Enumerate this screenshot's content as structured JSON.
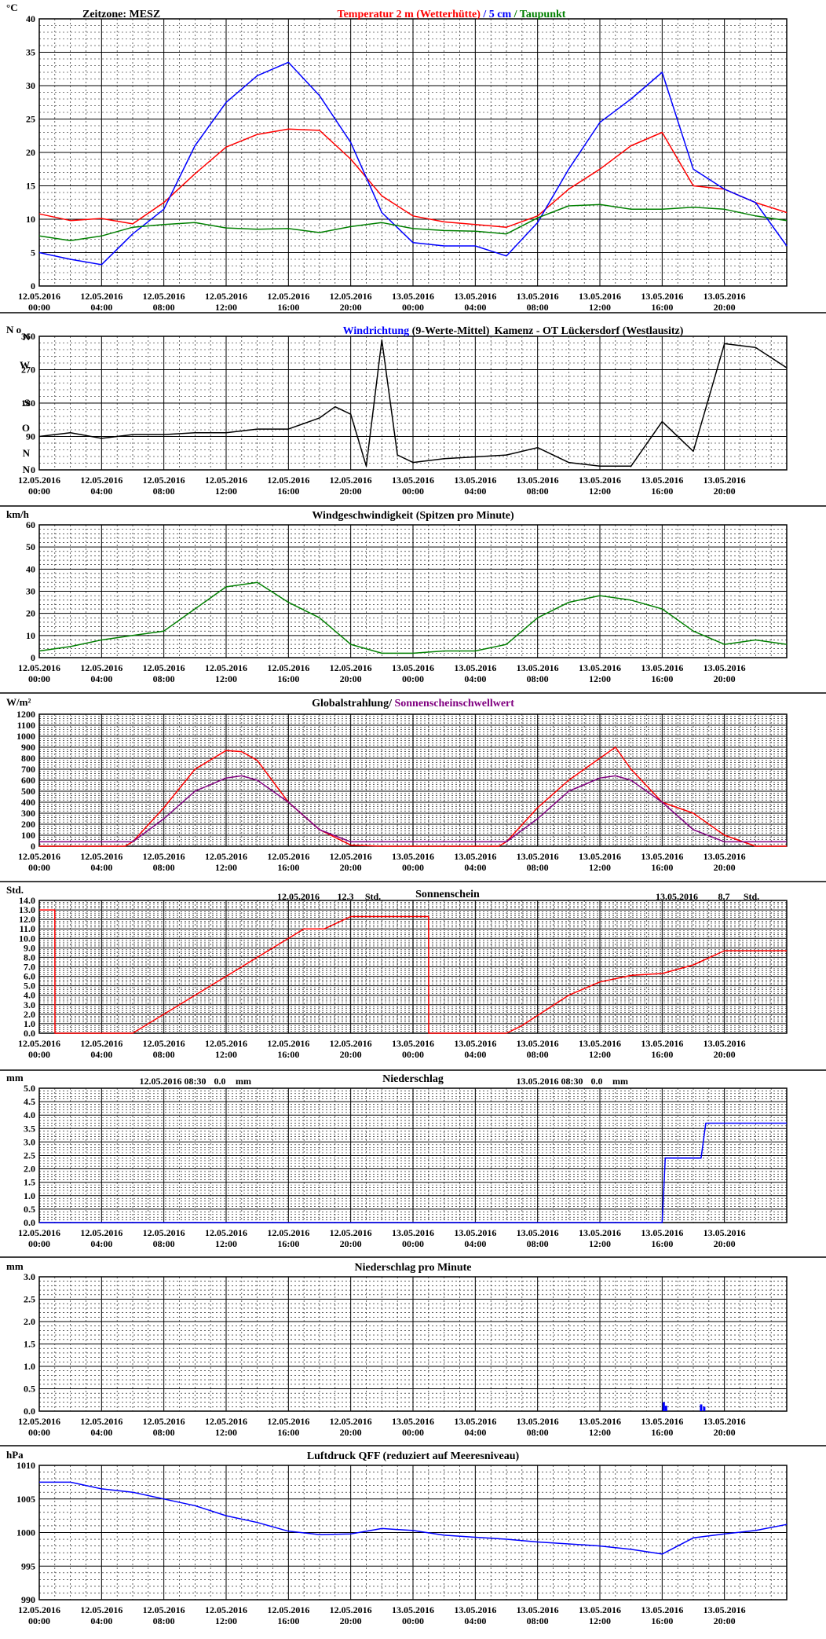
{
  "x_ticks": [
    [
      "12.05.2016",
      "00:00"
    ],
    [
      "12.05.2016",
      "04:00"
    ],
    [
      "12.05.2016",
      "08:00"
    ],
    [
      "12.05.2016",
      "12:00"
    ],
    [
      "12.05.2016",
      "16:00"
    ],
    [
      "12.05.2016",
      "20:00"
    ],
    [
      "13.05.2016",
      "00:00"
    ],
    [
      "13.05.2016",
      "04:00"
    ],
    [
      "13.05.2016",
      "08:00"
    ],
    [
      "13.05.2016",
      "12:00"
    ],
    [
      "13.05.2016",
      "16:00"
    ],
    [
      "13.05.2016",
      "20:00"
    ]
  ],
  "chart_data": [
    {
      "id": "temp",
      "type": "line",
      "unit": "°C",
      "timezone": "Zeitzone: MESZ",
      "title_parts": [
        {
          "text": "Temperatur 2 m (Wetterhütte)",
          "color": "#ff0000"
        },
        {
          "text": " / ",
          "color": "#0000ff"
        },
        {
          "text": "5 cm",
          "color": "#0000ff"
        },
        {
          "text": " / ",
          "color": "#008000"
        },
        {
          "text": "Taupunkt",
          "color": "#008000"
        }
      ],
      "ylim": [
        0,
        40
      ],
      "y_ticks": [
        0,
        5,
        10,
        15,
        20,
        25,
        30,
        35,
        40
      ],
      "x_hours": [
        0,
        2,
        4,
        6,
        8,
        10,
        12,
        14,
        16,
        18,
        20,
        22,
        24,
        26,
        28,
        30,
        32,
        34,
        36,
        38,
        40,
        42,
        44,
        46,
        48
      ],
      "series": [
        {
          "name": "Temperatur 2 m (Wetterhütte)",
          "color": "#ff0000",
          "values": [
            10.8,
            9.8,
            10.1,
            9.3,
            12.5,
            16.8,
            20.8,
            22.7,
            23.5,
            23.3,
            19.0,
            13.5,
            10.5,
            9.6,
            9.2,
            8.8,
            10.5,
            14.5,
            17.5,
            21.0,
            23.0,
            15.0,
            14.5,
            12.5,
            11.0
          ]
        },
        {
          "name": "5 cm",
          "color": "#0000ff",
          "values": [
            5.0,
            4.0,
            3.2,
            7.8,
            11.5,
            21.0,
            27.5,
            31.5,
            33.5,
            28.5,
            21.5,
            11.0,
            6.5,
            6.0,
            6.0,
            4.5,
            9.5,
            17.5,
            24.5,
            28.0,
            32.0,
            17.5,
            14.5,
            12.5,
            6.0
          ]
        },
        {
          "name": "Taupunkt",
          "color": "#008000",
          "values": [
            7.5,
            6.8,
            7.5,
            8.8,
            9.2,
            9.5,
            8.7,
            8.5,
            8.6,
            8.0,
            8.9,
            9.5,
            8.6,
            8.3,
            8.2,
            7.8,
            10.2,
            12.0,
            12.2,
            11.5,
            11.5,
            11.8,
            11.5,
            10.5,
            9.8
          ]
        }
      ]
    },
    {
      "id": "dir",
      "type": "line",
      "unit": "N o",
      "title_parts": [
        {
          "text": "Windrichtung",
          "color": "#0000ff"
        },
        {
          "text": " (9-Werte-Mittel)",
          "color": "#000000"
        }
      ],
      "title2": "Kamenz - OT Lückersdorf (Westlausitz)",
      "ylim": [
        0,
        360
      ],
      "y_ticks": [
        0,
        90,
        180,
        270,
        360
      ],
      "y_letters": [
        {
          "v": 0,
          "t": "N"
        },
        {
          "v": 45,
          "t": "N"
        },
        {
          "v": 112,
          "t": "O"
        },
        {
          "v": 180,
          "t": "S"
        },
        {
          "v": 282,
          "t": "W"
        },
        {
          "v": 358,
          "t": "N"
        }
      ],
      "x_hours": [
        0,
        2,
        4,
        6,
        8,
        10,
        12,
        14,
        16,
        18,
        19,
        20,
        21,
        22,
        23,
        24,
        26,
        28,
        30,
        32,
        34,
        36,
        38,
        40,
        42,
        44,
        46,
        48
      ],
      "series": [
        {
          "name": "Windrichtung",
          "color": "#000000",
          "values": [
            90,
            100,
            85,
            95,
            95,
            100,
            100,
            110,
            110,
            140,
            170,
            150,
            10,
            350,
            40,
            20,
            30,
            35,
            40,
            60,
            20,
            10,
            10,
            130,
            50,
            340,
            330,
            275
          ]
        }
      ]
    },
    {
      "id": "wind",
      "type": "line",
      "unit": "km/h",
      "title": "Windgeschwindigkeit (Spitzen pro Minute)",
      "ylim": [
        0,
        60
      ],
      "y_ticks": [
        0,
        10,
        20,
        30,
        40,
        50,
        60
      ],
      "x_hours": [
        0,
        2,
        4,
        6,
        8,
        10,
        12,
        14,
        16,
        18,
        20,
        22,
        24,
        26,
        28,
        30,
        32,
        34,
        36,
        38,
        40,
        42,
        44,
        46,
        48
      ],
      "series": [
        {
          "name": "Windgeschwindigkeit",
          "color": "#008000",
          "values": [
            3,
            5,
            8,
            10,
            12,
            22,
            32,
            34,
            25,
            18,
            6,
            2,
            2,
            3,
            3,
            6,
            18,
            25,
            28,
            26,
            22,
            12,
            6,
            8,
            6
          ]
        }
      ]
    },
    {
      "id": "rad",
      "type": "line",
      "unit": "W/m²",
      "title_parts": [
        {
          "text": "Globalstrahlung/ ",
          "color": "#000000"
        },
        {
          "text": "Sonnenscheinschwellwert",
          "color": "#800080"
        }
      ],
      "ylim": [
        0,
        1200
      ],
      "y_ticks": [
        0,
        100,
        200,
        300,
        400,
        500,
        600,
        700,
        800,
        900,
        1000,
        1100,
        1200
      ],
      "x_hours": [
        0,
        2,
        4,
        5.5,
        6,
        8,
        10,
        12,
        13,
        14,
        16,
        18,
        20,
        22,
        24,
        26,
        28,
        29.5,
        30,
        32,
        34,
        36,
        37,
        38,
        40,
        42,
        44,
        46,
        48
      ],
      "series": [
        {
          "name": "Globalstrahlung",
          "color": "#ff0000",
          "values": [
            0,
            0,
            0,
            0,
            40,
            350,
            700,
            870,
            860,
            780,
            400,
            150,
            10,
            0,
            0,
            0,
            0,
            0,
            40,
            350,
            600,
            800,
            900,
            700,
            400,
            300,
            100,
            0,
            0
          ]
        },
        {
          "name": "Sonnenscheinschwellwert",
          "color": "#800080",
          "values": [
            40,
            40,
            40,
            40,
            40,
            250,
            500,
            620,
            640,
            600,
            400,
            150,
            40,
            40,
            40,
            40,
            40,
            40,
            40,
            250,
            500,
            620,
            640,
            600,
            400,
            150,
            40,
            40,
            40
          ]
        }
      ]
    },
    {
      "id": "sun",
      "type": "line",
      "unit": "Std.",
      "title": "Sonnenschein",
      "annotations": [
        {
          "date": "12.05.2016",
          "value": "12.3",
          "unit": "Std."
        },
        {
          "date": "13.05.2016",
          "value": "8.7",
          "unit": "Std."
        }
      ],
      "ylim": [
        0,
        14
      ],
      "y_ticks": [
        0,
        1,
        2,
        3,
        4,
        5,
        6,
        7,
        8,
        9,
        10,
        11,
        12,
        13,
        14
      ],
      "x_hours": [
        0,
        1,
        1.01,
        6,
        17,
        18.3,
        20,
        25,
        25.01,
        30,
        31,
        34,
        36,
        38,
        40,
        42,
        44,
        46,
        48
      ],
      "series": [
        {
          "name": "Sonnenschein",
          "color": "#ff0000",
          "values": [
            13,
            13,
            0,
            0,
            11,
            11,
            12.3,
            12.3,
            0,
            0,
            0.8,
            4,
            5.4,
            6.1,
            6.3,
            7.2,
            8.7,
            8.7,
            8.7
          ]
        }
      ]
    },
    {
      "id": "prec",
      "type": "line",
      "unit": "mm",
      "title": "Niederschlag",
      "annotations": [
        {
          "date": "12.05.2016 08:30",
          "value": "0.0",
          "unit": "mm"
        },
        {
          "date": "13.05.2016 08:30",
          "value": "0.0",
          "unit": "mm"
        }
      ],
      "ylim": [
        0,
        5
      ],
      "y_ticks": [
        0,
        0.5,
        1,
        1.5,
        2,
        2.5,
        3,
        3.5,
        4,
        4.5,
        5
      ],
      "x_hours": [
        0,
        40,
        40.2,
        42.5,
        42.8,
        48
      ],
      "series": [
        {
          "name": "Niederschlag",
          "color": "#0000ff",
          "values": [
            0,
            0,
            2.4,
            2.4,
            3.7,
            3.7
          ]
        }
      ]
    },
    {
      "id": "precmin",
      "type": "bar",
      "unit": "mm",
      "title": "Niederschlag pro Minute",
      "ylim": [
        0,
        3
      ],
      "y_ticks": [
        0,
        0.5,
        1,
        1.5,
        2,
        2.5,
        3
      ],
      "x_hours": [
        40.1,
        40.25,
        42.5,
        42.7
      ],
      "series": [
        {
          "name": "Niederschlag pro Minute",
          "color": "#0000ff",
          "values": [
            0.2,
            0.12,
            0.15,
            0.1
          ]
        }
      ]
    },
    {
      "id": "press",
      "type": "line",
      "unit": "hPa",
      "title": "Luftdruck QFF (reduziert auf Meeresniveau)",
      "ylim": [
        990,
        1010
      ],
      "y_ticks": [
        990,
        995,
        1000,
        1005,
        1010
      ],
      "x_hours": [
        0,
        2,
        4,
        6,
        8,
        10,
        12,
        14,
        16,
        18,
        20,
        22,
        24,
        26,
        28,
        30,
        32,
        34,
        36,
        38,
        40,
        42,
        44,
        46,
        48
      ],
      "series": [
        {
          "name": "Luftdruck QFF",
          "color": "#0000ff",
          "values": [
            1007.5,
            1007.5,
            1006.5,
            1006,
            1005,
            1004,
            1002.5,
            1001.5,
            1000.2,
            999.7,
            999.8,
            1000.6,
            1000.3,
            999.6,
            999.3,
            999,
            998.6,
            998.3,
            998,
            997.5,
            996.8,
            999.2,
            999.8,
            1000.3,
            1001.2
          ]
        }
      ]
    }
  ]
}
